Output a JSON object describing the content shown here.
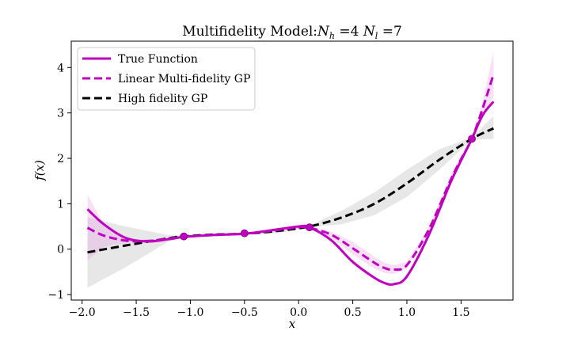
{
  "chart_data": {
    "type": "line",
    "title": "Multifidelity Model:N_h =4 N_l =7",
    "title_parts": {
      "prefix": "Multifidelity Model:",
      "nh_symbol": "N",
      "nh_sub": "h",
      "nh_value": " =4 ",
      "nl_symbol": "N",
      "nl_sub": "l",
      "nl_value": " =7"
    },
    "xlabel": "x",
    "ylabel": "f(x)",
    "xlim": [
      -2.1,
      1.98
    ],
    "ylim": [
      -1.12,
      4.58
    ],
    "xticks": [
      -2.0,
      -1.5,
      -1.0,
      -0.5,
      0.0,
      0.5,
      1.0,
      1.5
    ],
    "xtick_labels": [
      "−2.0",
      "−1.5",
      "−1.0",
      "−0.5",
      "0.0",
      "0.5",
      "1.0",
      "1.5"
    ],
    "yticks": [
      -1,
      0,
      1,
      2,
      3,
      4
    ],
    "ytick_labels": [
      "−1",
      "0",
      "1",
      "2",
      "3",
      "4"
    ],
    "legend_position": "top-left",
    "grid": false,
    "colors": {
      "true": "#c000c0",
      "linear": "#c000c0",
      "high": "#000000",
      "band_high": "#bbbbbb",
      "band_linear": "#e9a3e9"
    },
    "series": [
      {
        "name": "True Function",
        "style": "solid",
        "x": [
          -1.95,
          -1.8,
          -1.6,
          -1.4,
          -1.2,
          -1.06,
          -0.8,
          -0.5,
          -0.3,
          0.0,
          0.1,
          0.3,
          0.5,
          0.7,
          0.8,
          0.88,
          1.0,
          1.2,
          1.4,
          1.5,
          1.6,
          1.7,
          1.8
        ],
        "y": [
          0.88,
          0.55,
          0.25,
          0.17,
          0.22,
          0.27,
          0.31,
          0.34,
          0.4,
          0.5,
          0.48,
          0.2,
          -0.28,
          -0.63,
          -0.75,
          -0.77,
          -0.6,
          0.3,
          1.45,
          1.95,
          2.43,
          2.95,
          3.25
        ]
      },
      {
        "name": "Linear Multi-fidelity GP",
        "style": "dashed",
        "x": [
          -1.95,
          -1.8,
          -1.6,
          -1.4,
          -1.2,
          -1.06,
          -0.8,
          -0.5,
          -0.3,
          0.0,
          0.1,
          0.3,
          0.5,
          0.7,
          0.8,
          0.88,
          1.0,
          1.2,
          1.4,
          1.5,
          1.6,
          1.7,
          1.8
        ],
        "y": [
          0.47,
          0.3,
          0.19,
          0.18,
          0.23,
          0.27,
          0.31,
          0.34,
          0.39,
          0.48,
          0.47,
          0.32,
          0.02,
          -0.3,
          -0.42,
          -0.45,
          -0.35,
          0.42,
          1.5,
          1.98,
          2.43,
          3.1,
          3.85
        ]
      },
      {
        "name": "High fidelity GP",
        "style": "dashed",
        "x": [
          -1.95,
          -1.6,
          -1.2,
          -1.06,
          -0.8,
          -0.5,
          -0.2,
          0.1,
          0.4,
          0.7,
          1.0,
          1.3,
          1.6,
          1.8
        ],
        "y": [
          -0.07,
          0.08,
          0.24,
          0.28,
          0.32,
          0.34,
          0.4,
          0.5,
          0.7,
          1.0,
          1.45,
          1.97,
          2.43,
          2.66
        ]
      }
    ],
    "bands": [
      {
        "of": "High fidelity GP",
        "x": [
          -1.95,
          -1.6,
          -1.2,
          -1.06,
          -0.8,
          -0.5,
          -0.2,
          0.1,
          0.4,
          0.7,
          1.0,
          1.3,
          1.6,
          1.8
        ],
        "lower": [
          -0.85,
          -0.4,
          0.17,
          0.26,
          0.3,
          0.32,
          0.35,
          0.48,
          0.55,
          0.75,
          1.15,
          1.75,
          2.41,
          2.43
        ],
        "upper": [
          0.7,
          0.5,
          0.31,
          0.3,
          0.34,
          0.36,
          0.45,
          0.52,
          0.85,
          1.25,
          1.75,
          2.2,
          2.46,
          2.93
        ]
      },
      {
        "of": "Linear Multi-fidelity GP",
        "x": [
          -1.95,
          -1.8,
          -1.6,
          -1.4,
          -1.2,
          -1.06,
          -0.8,
          -0.5,
          -0.3,
          0.0,
          0.1,
          0.3,
          0.5,
          0.7,
          0.8,
          0.88,
          1.0,
          1.2,
          1.4,
          1.5,
          1.6,
          1.7,
          1.8
        ],
        "lower": [
          -0.25,
          0.05,
          0.14,
          0.16,
          0.22,
          0.26,
          0.3,
          0.33,
          0.37,
          0.46,
          0.47,
          0.25,
          -0.12,
          -0.43,
          -0.53,
          -0.55,
          -0.42,
          0.37,
          1.4,
          1.9,
          2.41,
          2.95,
          3.35
        ],
        "upper": [
          1.2,
          0.55,
          0.24,
          0.2,
          0.24,
          0.28,
          0.32,
          0.35,
          0.41,
          0.5,
          0.48,
          0.39,
          0.16,
          -0.17,
          -0.31,
          -0.35,
          -0.28,
          0.47,
          1.6,
          2.06,
          2.45,
          3.25,
          4.35
        ]
      }
    ],
    "points": [
      {
        "x": -1.06,
        "y": 0.28
      },
      {
        "x": -0.5,
        "y": 0.35
      },
      {
        "x": 0.1,
        "y": 0.48
      },
      {
        "x": 1.6,
        "y": 2.43
      }
    ]
  }
}
